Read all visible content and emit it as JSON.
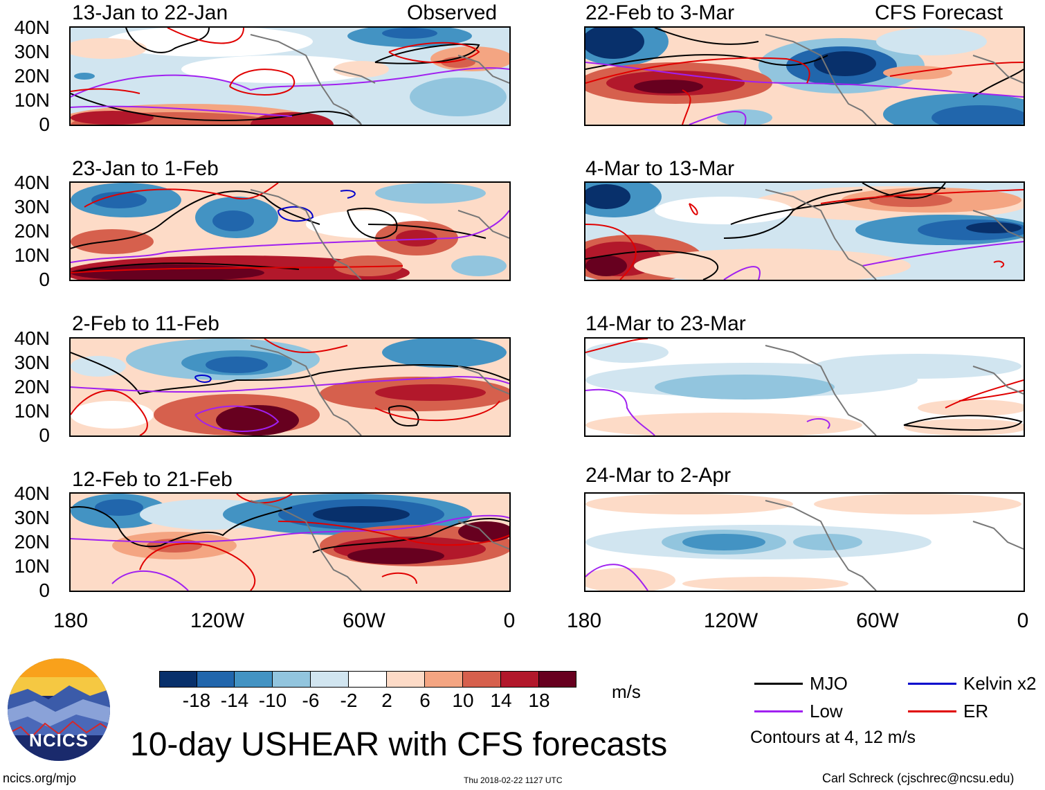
{
  "panels": {
    "obs_header": "Observed",
    "fcst_header": "CFS Forecast",
    "left": [
      "13-Jan to 22-Jan",
      "23-Jan to 1-Feb",
      "2-Feb to 11-Feb",
      "12-Feb to 21-Feb"
    ],
    "right": [
      "22-Feb to 3-Mar",
      "4-Mar to 13-Mar",
      "14-Mar to 23-Mar",
      "24-Mar to 2-Apr"
    ]
  },
  "axes": {
    "lat_labels": [
      "40N",
      "30N",
      "20N",
      "10N",
      "0"
    ],
    "lon_labels": [
      "180",
      "120W",
      "60W",
      "0"
    ]
  },
  "colorbar": {
    "ticks": [
      "-18",
      "-14",
      "-10",
      "-6",
      "-2",
      "2",
      "6",
      "10",
      "14",
      "18"
    ],
    "units": "m/s",
    "colors": [
      "#08306b",
      "#2166ac",
      "#4393c3",
      "#92c5de",
      "#d1e5f0",
      "#ffffff",
      "#fddbc7",
      "#f4a582",
      "#d6604d",
      "#b2182b",
      "#67001f"
    ]
  },
  "legend": {
    "mjo": "MJO",
    "kelvin": "Kelvin x2",
    "low": "Low",
    "er": "ER",
    "note": "Contours at 4, 12 m/s",
    "colors": {
      "mjo": "#000000",
      "kelvin": "#0000cc",
      "low": "#a020f0",
      "er": "#e00000"
    }
  },
  "footer": {
    "logo_text": "NCICS",
    "title": "10-day USHEAR with CFS forecasts",
    "url": "ncics.org/mjo",
    "timestamp": "Thu 2018-02-22 1127 UTC",
    "credit": "Carl Schreck (cjschrec@ncsu.edu)"
  }
}
